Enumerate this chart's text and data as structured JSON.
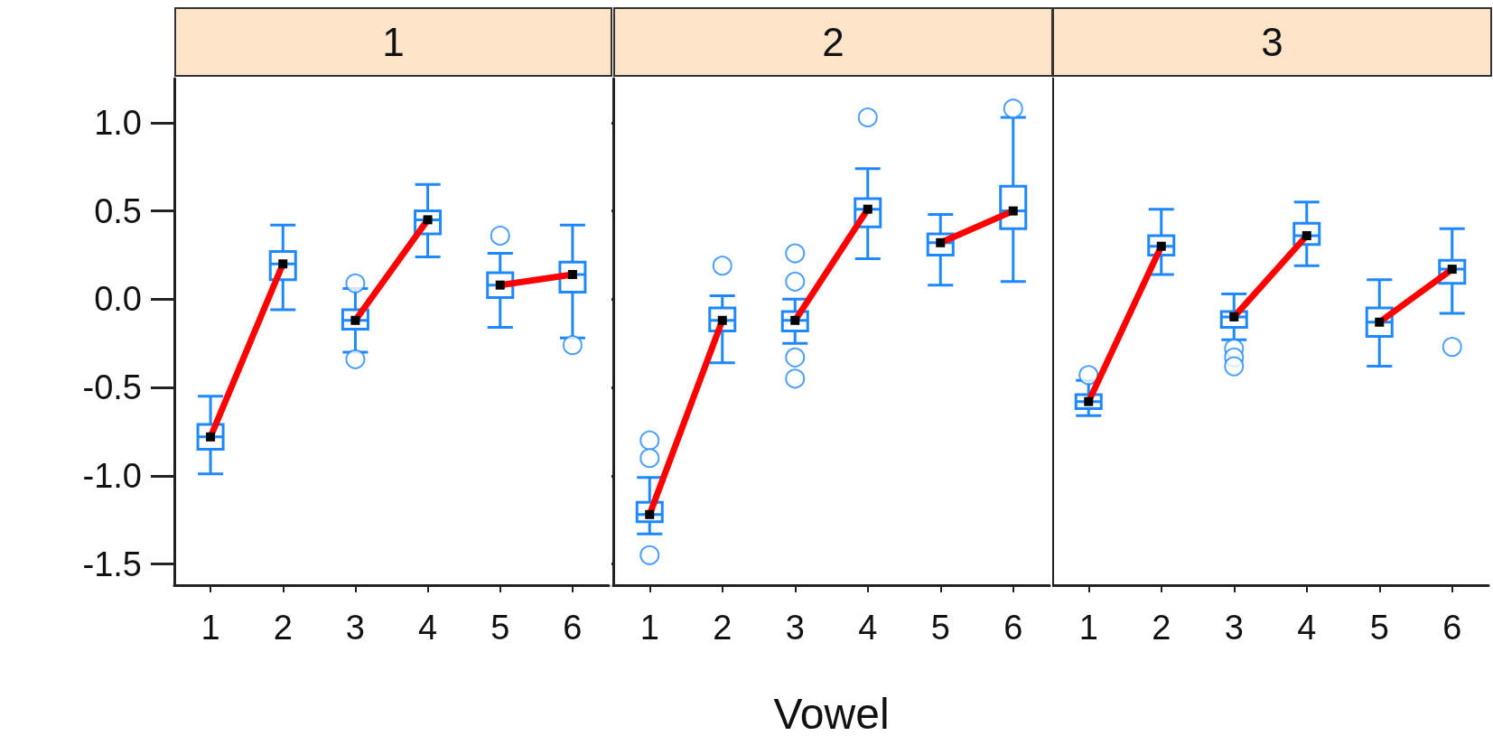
{
  "chart_data": [
    {
      "type": "box",
      "title": "1",
      "categories": [
        "1",
        "2",
        "3",
        "4",
        "5",
        "6"
      ],
      "color": "#1e88ff",
      "boxes": [
        {
          "low": -0.99,
          "q1": -0.85,
          "median": -0.78,
          "q3": -0.71,
          "high": -0.55
        },
        {
          "low": -0.06,
          "q1": 0.11,
          "median": 0.2,
          "q3": 0.27,
          "high": 0.42
        },
        {
          "low": -0.3,
          "q1": -0.17,
          "median": -0.12,
          "q3": -0.06,
          "high": 0.06,
          "outliers": [
            0.09,
            -0.34
          ]
        },
        {
          "low": 0.24,
          "q1": 0.37,
          "median": 0.45,
          "q3": 0.5,
          "high": 0.65
        },
        {
          "low": -0.16,
          "q1": 0.01,
          "median": 0.08,
          "q3": 0.15,
          "high": 0.26,
          "outliers": [
            0.36
          ]
        },
        {
          "low": -0.22,
          "q1": 0.04,
          "median": 0.14,
          "q3": 0.21,
          "high": 0.42,
          "outliers": [
            -0.26
          ]
        }
      ],
      "series": [
        {
          "type": "line",
          "color": "#ff0000",
          "x": [
            "1",
            "2"
          ],
          "values": [
            -0.78,
            0.2
          ]
        },
        {
          "type": "line",
          "color": "#ff0000",
          "x": [
            "3",
            "4"
          ],
          "values": [
            -0.12,
            0.45
          ]
        },
        {
          "type": "line",
          "color": "#ff0000",
          "x": [
            "5",
            "6"
          ],
          "values": [
            0.08,
            0.14
          ]
        }
      ],
      "ylim": [
        -1.62,
        1.25
      ],
      "yticks": [
        {
          "value": -1.5,
          "label": "-1.5"
        },
        {
          "value": -1,
          "label": "-1.0"
        },
        {
          "value": -0.5,
          "label": "-0.5"
        },
        {
          "value": 0,
          "label": "0.0"
        },
        {
          "value": 0.5,
          "label": "0.5"
        },
        {
          "value": 1,
          "label": "1.0"
        }
      ],
      "marker": "square",
      "line_style": "solid"
    },
    {
      "type": "box",
      "title": "2",
      "xlabel": "Vowel",
      "categories": [
        "1",
        "2",
        "3",
        "4",
        "5",
        "6"
      ],
      "color": "#1e88ff",
      "boxes": [
        {
          "low": -1.33,
          "q1": -1.26,
          "median": -1.22,
          "q3": -1.15,
          "high": -1.01,
          "outliers": [
            -0.8,
            -0.9,
            -1.45
          ]
        },
        {
          "low": -0.36,
          "q1": -0.18,
          "median": -0.12,
          "q3": -0.05,
          "high": 0.02,
          "outliers": [
            0.19
          ]
        },
        {
          "low": -0.25,
          "q1": -0.18,
          "median": -0.12,
          "q3": -0.07,
          "high": 0.0,
          "outliers": [
            0.26,
            0.1,
            -0.33,
            -0.45
          ]
        },
        {
          "low": 0.23,
          "q1": 0.41,
          "median": 0.51,
          "q3": 0.57,
          "high": 0.74,
          "outliers": [
            1.03
          ]
        },
        {
          "low": 0.08,
          "q1": 0.25,
          "median": 0.32,
          "q3": 0.37,
          "high": 0.48
        },
        {
          "low": 0.1,
          "q1": 0.4,
          "median": 0.5,
          "q3": 0.64,
          "high": 1.03,
          "outliers": [
            1.08
          ]
        }
      ],
      "series": [
        {
          "type": "line",
          "color": "#ff0000",
          "x": [
            "1",
            "2"
          ],
          "values": [
            -1.22,
            -0.12
          ]
        },
        {
          "type": "line",
          "color": "#ff0000",
          "x": [
            "3",
            "4"
          ],
          "values": [
            -0.12,
            0.51
          ]
        },
        {
          "type": "line",
          "color": "#ff0000",
          "x": [
            "5",
            "6"
          ],
          "values": [
            0.32,
            0.5
          ]
        }
      ],
      "ylim": [
        -1.62,
        1.25
      ],
      "yticks": [
        -1.5,
        -1,
        -0.5,
        0,
        0.5,
        1
      ],
      "tick_labels": "x",
      "marker": "square",
      "line_style": "solid"
    },
    {
      "type": "box",
      "title": "3",
      "categories": [
        "1",
        "2",
        "3",
        "4",
        "5",
        "6"
      ],
      "color": "#1e88ff",
      "boxes": [
        {
          "low": -0.66,
          "q1": -0.62,
          "median": -0.58,
          "q3": -0.54,
          "high": -0.46,
          "outliers": [
            -0.43
          ]
        },
        {
          "low": 0.14,
          "q1": 0.25,
          "median": 0.3,
          "q3": 0.36,
          "high": 0.51
        },
        {
          "low": -0.23,
          "q1": -0.16,
          "median": -0.1,
          "q3": -0.07,
          "high": 0.03,
          "outliers": [
            -0.28,
            -0.33,
            -0.38
          ]
        },
        {
          "low": 0.19,
          "q1": 0.31,
          "median": 0.36,
          "q3": 0.43,
          "high": 0.55
        },
        {
          "low": -0.38,
          "q1": -0.21,
          "median": -0.13,
          "q3": -0.05,
          "high": 0.11
        },
        {
          "low": -0.08,
          "q1": 0.09,
          "median": 0.17,
          "q3": 0.22,
          "high": 0.4,
          "outliers": [
            -0.27
          ]
        }
      ],
      "series": [
        {
          "type": "line",
          "color": "#ff0000",
          "x": [
            "1",
            "2"
          ],
          "values": [
            -0.58,
            0.3
          ]
        },
        {
          "type": "line",
          "color": "#ff0000",
          "x": [
            "3",
            "4"
          ],
          "values": [
            -0.1,
            0.36
          ]
        },
        {
          "type": "line",
          "color": "#ff0000",
          "x": [
            "5",
            "6"
          ],
          "values": [
            -0.13,
            0.17
          ]
        }
      ],
      "ylim": [
        -1.62,
        1.25
      ],
      "yticks": [
        -1.5,
        -1,
        -0.5,
        0,
        0.5,
        1
      ],
      "tick_labels": "x",
      "marker": "square",
      "line_style": "solid"
    }
  ]
}
